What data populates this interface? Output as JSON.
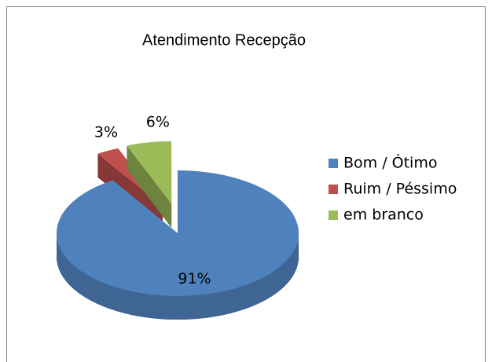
{
  "chart_data": {
    "type": "pie",
    "title": "Atendimento Recepção",
    "categories": [
      "Bom / Ótimo",
      "Ruim / Péssimo",
      "em branco"
    ],
    "values": [
      91,
      3,
      6
    ],
    "value_labels": [
      "91%",
      "3%",
      "6%"
    ],
    "colors": [
      "#4f81bd",
      "#c0504d",
      "#9bbb59"
    ],
    "legend": "right"
  }
}
